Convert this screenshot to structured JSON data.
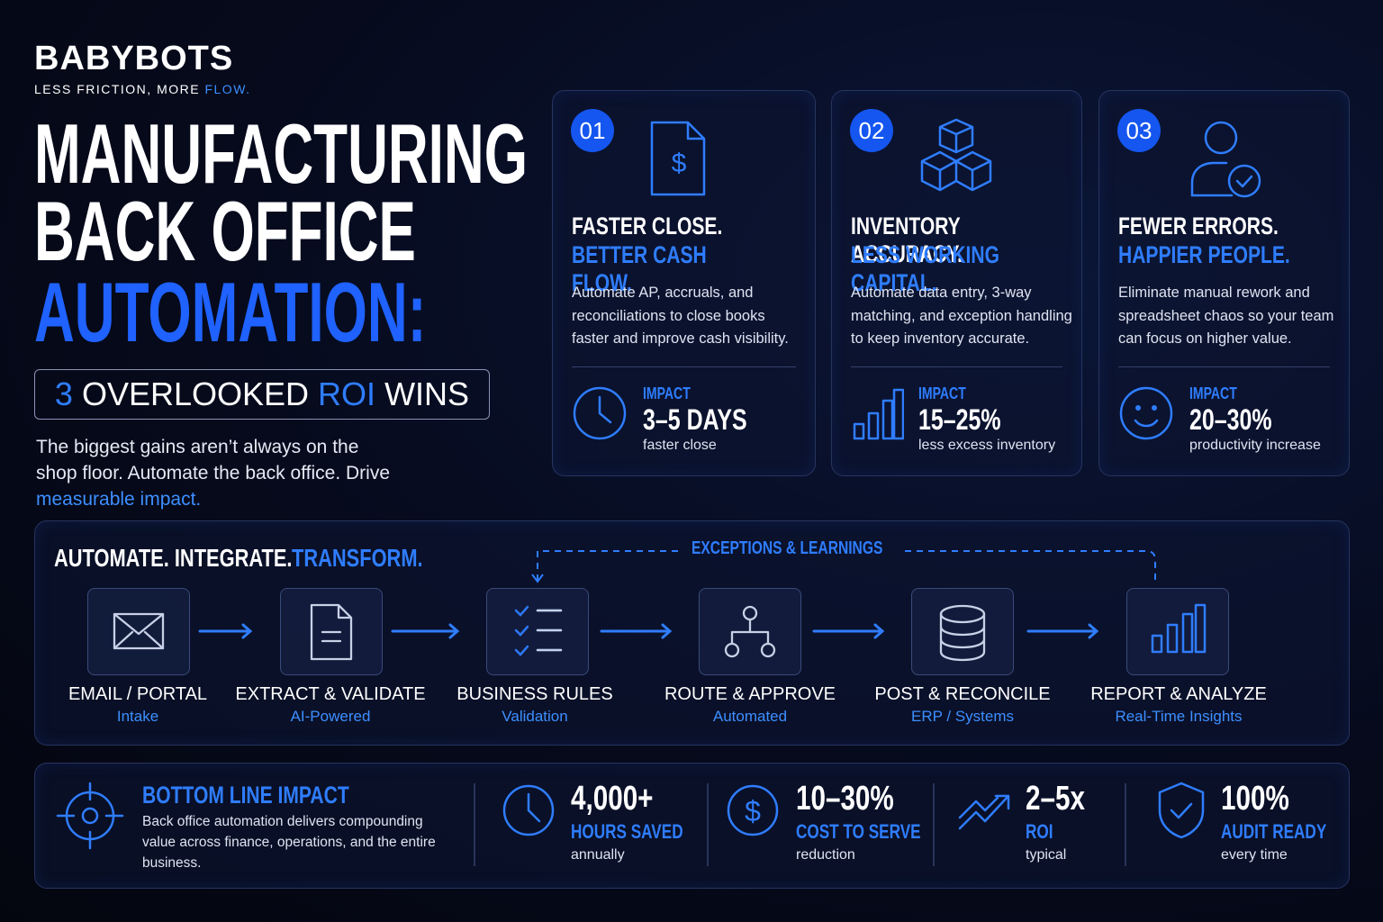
{
  "brand": {
    "name": "BABYBOTS",
    "tagline": "LESS FRICTION, MORE",
    "tagline_accent": "FLOW."
  },
  "headline": {
    "lines": [
      "MANUFACTURING",
      "BACK OFFICE"
    ],
    "accent": "AUTOMATION:"
  },
  "badge": {
    "number": "3",
    "text": "OVERLOOKED",
    "accent": "ROI",
    "end": "WINS"
  },
  "intro": {
    "text": "The biggest gains aren’t always on the shop floor. Automate the back office. Drive",
    "accent": "measurable impact."
  },
  "cards": [
    {
      "number": "01",
      "title": "FASTER CLOSE.",
      "title_accent": "BETTER CASH FLOW.",
      "body": "Automate AP, accruals, and reconciliations to close books faster and improve cash visibility.",
      "impact_label": "IMPACT",
      "impact_value": "3–5 DAYS",
      "impact_note": "faster close"
    },
    {
      "number": "02",
      "title": "INVENTORY ACCURACY.",
      "title_accent": "LESS WORKING CAPITAL.",
      "body": "Automate data entry, 3-way matching, and exception handling to keep inventory accurate.",
      "impact_label": "IMPACT",
      "impact_value": "15–25%",
      "impact_note": "less excess inventory"
    },
    {
      "number": "03",
      "title": "FEWER ERRORS.",
      "title_accent": "HAPPIER PEOPLE.",
      "body": "Eliminate manual rework and spreadsheet chaos so your team can focus on higher value.",
      "impact_label": "IMPACT",
      "impact_value": "20–30%",
      "impact_note": "productivity increase"
    }
  ],
  "process": {
    "title": "AUTOMATE. INTEGRATE.",
    "title_accent": "TRANSFORM.",
    "loop_label": "EXCEPTIONS & LEARNINGS",
    "steps": [
      {
        "label": "EMAIL / PORTAL",
        "sub": "Intake"
      },
      {
        "label": "EXTRACT & VALIDATE",
        "sub": "AI-Powered"
      },
      {
        "label": "BUSINESS RULES",
        "sub": "Validation"
      },
      {
        "label": "ROUTE & APPROVE",
        "sub": "Automated"
      },
      {
        "label": "POST & RECONCILE",
        "sub": "ERP / Systems"
      },
      {
        "label": "REPORT & ANALYZE",
        "sub": "Real-Time Insights"
      }
    ]
  },
  "bottom": {
    "title": "BOTTOM LINE IMPACT",
    "body": "Back office automation delivers compounding value across finance, operations, and the entire business.",
    "stats": [
      {
        "value": "4,000+",
        "label": "HOURS SAVED",
        "note": "annually"
      },
      {
        "value": "10–30%",
        "label": "COST TO SERVE",
        "note": "reduction"
      },
      {
        "value": "2–5x",
        "label": "ROI",
        "note": "typical"
      },
      {
        "value": "100%",
        "label": "AUDIT READY",
        "note": "every time"
      }
    ]
  }
}
